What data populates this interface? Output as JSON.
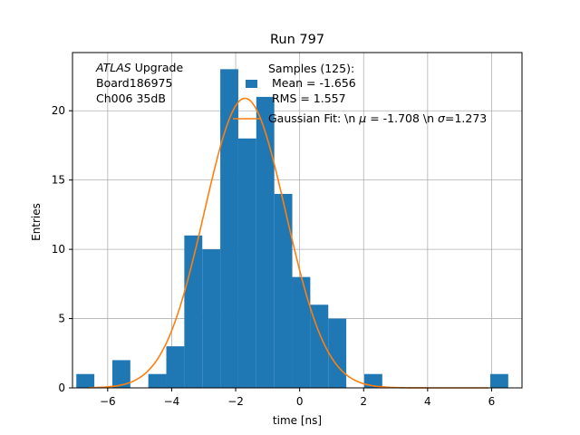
{
  "chart_data": {
    "type": "bar",
    "title": "Run 797",
    "xlabel": "time [ns]",
    "ylabel": "Entries",
    "xlim": [
      -7.1,
      6.95
    ],
    "ylim": [
      0,
      24.2
    ],
    "grid": true,
    "legend_position": "top-right",
    "x_ticks": [
      -6,
      -4,
      -2,
      0,
      2,
      4,
      6
    ],
    "x_tick_labels": [
      "−6",
      "−4",
      "−2",
      "0",
      "2",
      "4",
      "6"
    ],
    "y_ticks": [
      0,
      5,
      10,
      15,
      20
    ],
    "y_tick_labels": [
      "0",
      "5",
      "10",
      "15",
      "20"
    ],
    "bin_width": 0.5625,
    "bins": [
      {
        "x0": -6.98,
        "count": 1
      },
      {
        "x0": -5.855,
        "count": 2
      },
      {
        "x0": -4.73,
        "count": 1
      },
      {
        "x0": -4.1675,
        "count": 3
      },
      {
        "x0": -3.605,
        "count": 11
      },
      {
        "x0": -3.0425,
        "count": 10
      },
      {
        "x0": -2.48,
        "count": 23
      },
      {
        "x0": -1.9175,
        "count": 18
      },
      {
        "x0": -1.355,
        "count": 21
      },
      {
        "x0": -0.7925,
        "count": 14
      },
      {
        "x0": -0.23,
        "count": 8
      },
      {
        "x0": 0.3325,
        "count": 6
      },
      {
        "x0": 0.895,
        "count": 5
      },
      {
        "x0": 2.02,
        "count": 1
      },
      {
        "x0": 5.9575,
        "count": 1
      }
    ],
    "fit": {
      "amplitude": 20.9,
      "mean": -1.708,
      "sigma": 1.273
    },
    "colors": {
      "bars": "#1f77b4",
      "fit": "#ff7f0e",
      "grid": "#b0b0b0"
    },
    "legend": {
      "samples_label": "Samples (125):\n Mean = -1.656\n RMS = 1.557",
      "fit_label": "Gaussian Fit: \\n $\\mu$ = -1.708 \\n $\\sigma$=1.273"
    }
  },
  "annotation": {
    "atlas": "ATLAS",
    "upgrade": " Upgrade",
    "board": " Board186975",
    "channel": " Ch006 35dB"
  },
  "legend": {
    "samples_title": "Samples (125):",
    "samples_mean": " Mean = -1.656",
    "samples_rms": " RMS = 1.557",
    "fit_prefix": "Gaussian Fit: \\n ",
    "fit_mu": "μ",
    "fit_mid": " = -1.708 \\n ",
    "fit_sigma": "σ",
    "fit_suffix": "=1.273"
  }
}
